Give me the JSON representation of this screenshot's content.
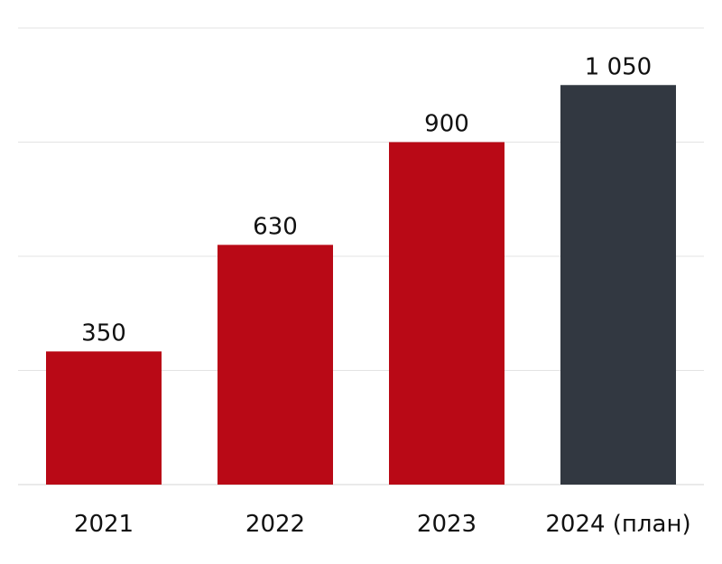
{
  "chart_data": {
    "type": "bar",
    "title": "",
    "xlabel": "",
    "ylabel": "",
    "categories": [
      "2021",
      "2022",
      "2023",
      "2024 (план)"
    ],
    "values": [
      350,
      630,
      900,
      1050
    ],
    "value_labels": [
      "350",
      "630",
      "900",
      "1 050"
    ],
    "ylim": [
      0,
      1200
    ],
    "grid": true,
    "legend": "none",
    "colors": [
      "#b90916",
      "#b90916",
      "#b90916",
      "#323841"
    ]
  }
}
